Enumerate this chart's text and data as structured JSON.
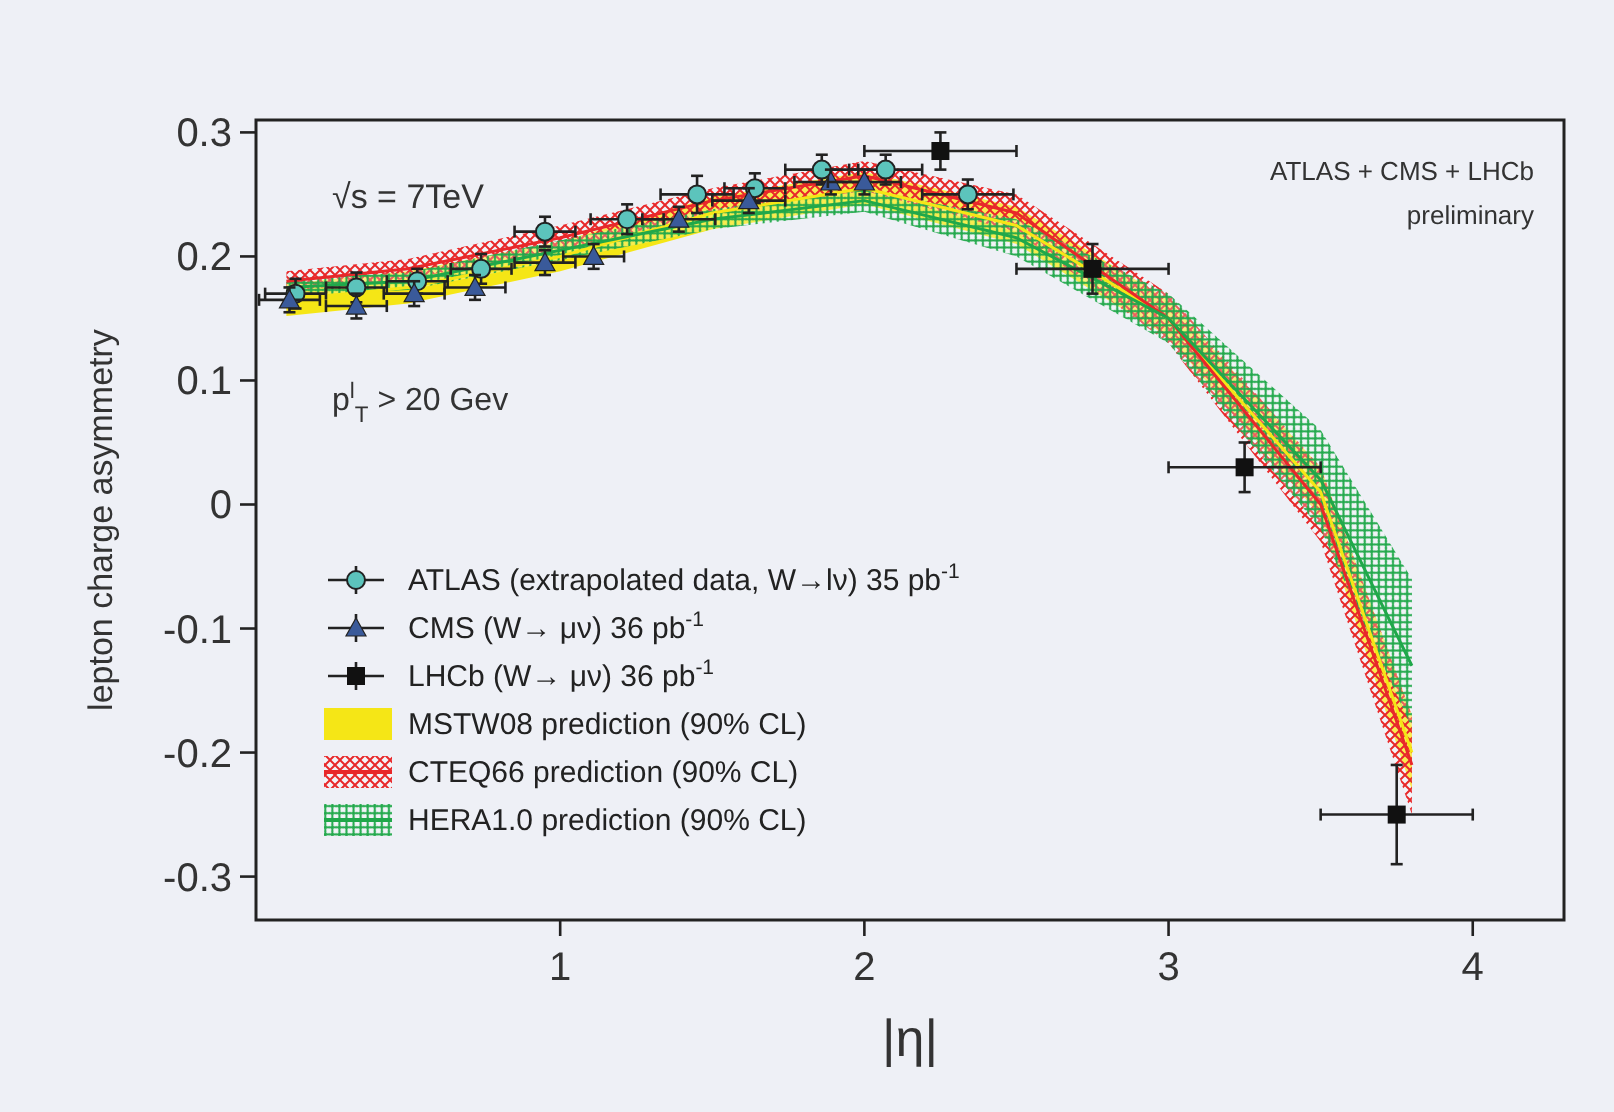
{
  "chart_data": {
    "type": "line",
    "xlabel": "|η|",
    "ylabel": "lepton charge asymmetry",
    "xlim": [
      0,
      4.3
    ],
    "xticks": [
      1,
      2,
      3,
      4
    ],
    "ylim": [
      -0.335,
      0.31
    ],
    "yticks": [
      -0.3,
      -0.2,
      -0.1,
      0,
      0.1,
      0.2,
      0.3
    ],
    "grid": false,
    "legend": "bottom left",
    "annotations": [
      "√s = 7TeV",
      "p$^{l}$$_{T}$ > 20 Gev",
      "ATLAS + CMS + LHCb",
      "preliminary"
    ],
    "series": [
      {
        "name": "MSTW08 prediction (90% CL)",
        "color": "#f5e616",
        "x": [
          0.1,
          0.5,
          1,
          1.5,
          2,
          2.5,
          3,
          3.5,
          3.8
        ],
        "values": [
          0.165,
          0.175,
          0.2,
          0.235,
          0.255,
          0.225,
          0.15,
          0.01,
          -0.2
        ],
        "lower": [
          0.152,
          0.162,
          0.188,
          0.222,
          0.242,
          0.21,
          0.135,
          -0.01,
          -0.23
        ],
        "upper": [
          0.178,
          0.188,
          0.212,
          0.248,
          0.268,
          0.24,
          0.165,
          0.03,
          -0.17
        ],
        "line_style": "solid"
      },
      {
        "name": "CTEQ66 prediction (90% CL)",
        "color": "#e8282a",
        "x": [
          0.1,
          0.5,
          1,
          1.5,
          2,
          2.5,
          3,
          3.5,
          3.8
        ],
        "values": [
          0.18,
          0.19,
          0.215,
          0.245,
          0.265,
          0.235,
          0.15,
          0.0,
          -0.21
        ],
        "lower": [
          0.172,
          0.182,
          0.205,
          0.235,
          0.253,
          0.22,
          0.13,
          -0.03,
          -0.25
        ],
        "upper": [
          0.188,
          0.198,
          0.225,
          0.255,
          0.277,
          0.25,
          0.17,
          0.03,
          -0.17
        ],
        "line_style": "solid"
      },
      {
        "name": "HERA1.0 prediction (90% CL)",
        "color": "#20a84a",
        "x": [
          0.1,
          0.5,
          1,
          1.5,
          2,
          2.5,
          3,
          3.5,
          3.8
        ],
        "values": [
          0.175,
          0.18,
          0.205,
          0.23,
          0.245,
          0.215,
          0.15,
          0.02,
          -0.13
        ],
        "lower": [
          0.168,
          0.173,
          0.197,
          0.222,
          0.236,
          0.2,
          0.13,
          -0.02,
          -0.18
        ],
        "upper": [
          0.182,
          0.187,
          0.213,
          0.238,
          0.254,
          0.23,
          0.17,
          0.06,
          -0.06
        ],
        "line_style": "solid"
      },
      {
        "name": "ATLAS (extrapolated data, W→lν) 35 pb$^{-1}$",
        "type": "scatter",
        "marker": "circle",
        "color": "#5cc4bc",
        "x": [
          0.13,
          0.33,
          0.53,
          0.74,
          0.95,
          1.22,
          1.45,
          1.64,
          1.86,
          2.07,
          2.34
        ],
        "values": [
          0.17,
          0.175,
          0.18,
          0.19,
          0.22,
          0.23,
          0.25,
          0.255,
          0.27,
          0.27,
          0.25
        ],
        "errors": [
          0.012,
          0.012,
          0.01,
          0.012,
          0.012,
          0.012,
          0.015,
          0.012,
          0.012,
          0.012,
          0.012
        ],
        "xerrors": [
          0.1,
          0.1,
          0.1,
          0.1,
          0.1,
          0.12,
          0.12,
          0.1,
          0.12,
          0.12,
          0.15
        ]
      },
      {
        "name": "CMS (W→ μν) 36 pb$^{-1}$",
        "type": "scatter",
        "marker": "triangle",
        "color": "#3a5a9a",
        "x": [
          0.11,
          0.33,
          0.52,
          0.72,
          0.95,
          1.11,
          1.39,
          1.62,
          1.89,
          2.0
        ],
        "values": [
          0.165,
          0.16,
          0.17,
          0.175,
          0.195,
          0.2,
          0.23,
          0.245,
          0.26,
          0.26
        ],
        "errors": [
          0.01,
          0.01,
          0.01,
          0.01,
          0.01,
          0.01,
          0.01,
          0.01,
          0.01,
          0.01
        ],
        "xerrors": [
          0.1,
          0.1,
          0.1,
          0.1,
          0.1,
          0.1,
          0.12,
          0.12,
          0.12,
          0.12
        ]
      },
      {
        "name": "LHCb (W→ μν) 36 pb$^{-1}$",
        "type": "scatter",
        "marker": "square",
        "color": "#111111",
        "x": [
          2.25,
          2.75,
          3.25,
          3.75
        ],
        "values": [
          0.285,
          0.19,
          0.03,
          -0.25
        ],
        "errors": [
          0.015,
          0.02,
          0.02,
          0.04
        ],
        "xerrors": [
          0.25,
          0.25,
          0.25,
          0.25
        ]
      }
    ]
  }
}
